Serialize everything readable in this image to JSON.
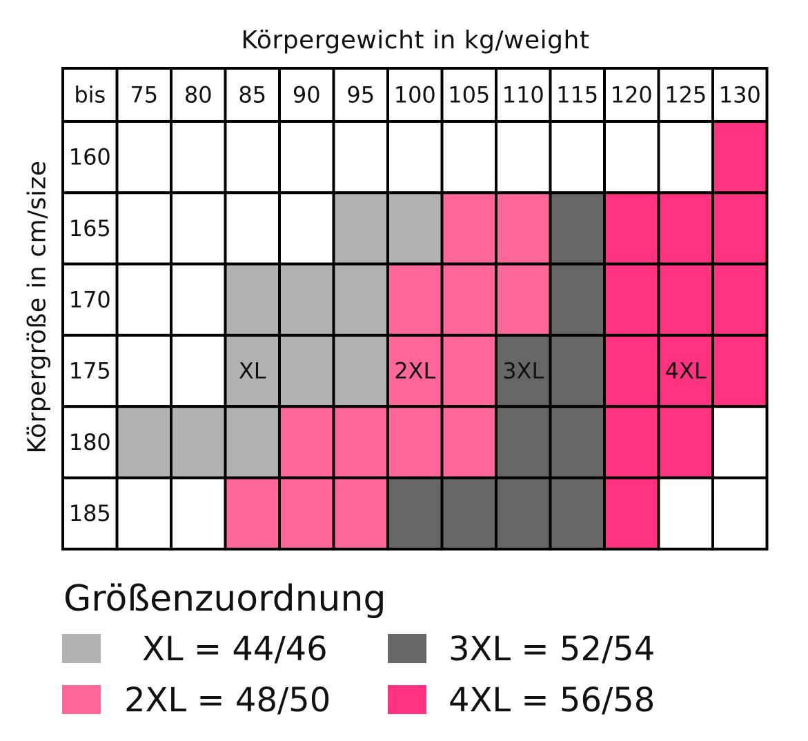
{
  "chart_data": {
    "type": "heatmap",
    "title": "Körpergewicht in kg/weight",
    "xlabel": "Körpergewicht in kg/weight",
    "ylabel": "Körpergröße in cm/size",
    "corner_label": "bis",
    "x": [
      "75",
      "80",
      "85",
      "90",
      "95",
      "100",
      "105",
      "110",
      "115",
      "120",
      "125",
      "130"
    ],
    "y": [
      "160",
      "165",
      "170",
      "175",
      "180",
      "185"
    ],
    "cells": [
      [
        "",
        "",
        "",
        "",
        "",
        "",
        "",
        "",
        "",
        "",
        "",
        "4XL"
      ],
      [
        "",
        "",
        "",
        "",
        "XL",
        "XL",
        "2XL",
        "2XL",
        "3XL",
        "4XL",
        "4XL",
        "4XL"
      ],
      [
        "",
        "",
        "XL",
        "XL",
        "XL",
        "2XL",
        "2XL",
        "2XL",
        "3XL",
        "4XL",
        "4XL",
        "4XL"
      ],
      [
        "",
        "",
        "XL",
        "XL",
        "XL",
        "2XL",
        "2XL",
        "3XL",
        "3XL",
        "4XL",
        "4XL",
        "4XL"
      ],
      [
        "XL",
        "XL",
        "XL",
        "2XL",
        "2XL",
        "2XL",
        "2XL",
        "3XL",
        "3XL",
        "4XL",
        "4XL",
        ""
      ],
      [
        "",
        "",
        "2XL",
        "2XL",
        "2XL",
        "3XL",
        "3XL",
        "3XL",
        "3XL",
        "4XL",
        "",
        ""
      ]
    ],
    "cell_labels": [
      {
        "row": 3,
        "col": 2,
        "text": "XL"
      },
      {
        "row": 3,
        "col": 5,
        "text": "2XL"
      },
      {
        "row": 3,
        "col": 7,
        "text": "3XL"
      },
      {
        "row": 3,
        "col": 10,
        "text": "4XL"
      }
    ],
    "colors": {
      "XL": "#b2b2b2",
      "2XL": "#ff6699",
      "3XL": "#666666",
      "4XL": "#ff3380",
      "": "#ffffff"
    }
  },
  "legend": {
    "title": "Größenzuordnung",
    "items": [
      {
        "key": "XL",
        "text": "XL = 44/46",
        "color": "#b2b2b2"
      },
      {
        "key": "3XL",
        "text": "3XL = 52/54",
        "color": "#666666"
      },
      {
        "key": "2XL",
        "text": "2XL = 48/50",
        "color": "#ff6699"
      },
      {
        "key": "4XL",
        "text": "4XL = 56/58",
        "color": "#ff3380"
      }
    ]
  }
}
